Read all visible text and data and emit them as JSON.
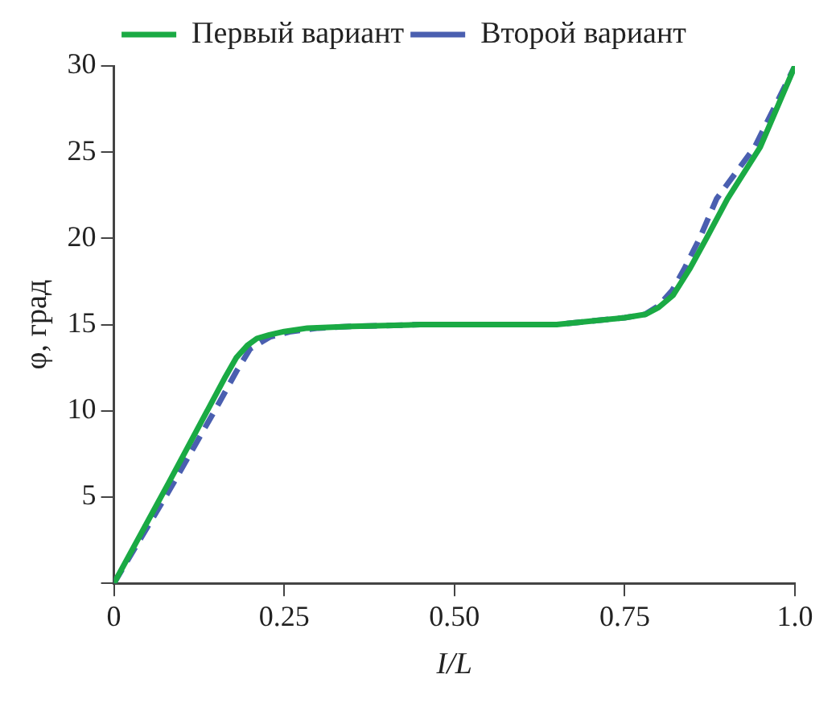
{
  "chart_data": {
    "type": "line",
    "xlabel": "I/L",
    "ylabel": "φ, град",
    "xlim": [
      0,
      1.0
    ],
    "ylim": [
      0,
      30
    ],
    "xticks": [
      0,
      0.25,
      {
        "value": 0.5,
        "label": "0.50"
      },
      0.75,
      {
        "value": 1.0,
        "label": "1.0"
      }
    ],
    "yticks": [
      {
        "value": 0,
        "label": null
      },
      5,
      10,
      15,
      20,
      25,
      30
    ],
    "grid": false,
    "legend": "top",
    "marker": "none",
    "series": [
      {
        "name": "Первый вариант",
        "color": "#1aaa44",
        "line_style": "solid",
        "x": [
          0,
          0.08,
          0.164,
          0.18,
          0.196,
          0.21,
          0.228,
          0.25,
          0.284,
          0.35,
          0.45,
          0.55,
          0.65,
          0.7,
          0.75,
          0.781,
          0.8,
          0.821,
          0.845,
          0.87,
          0.901,
          0.949,
          1.0
        ],
        "values": [
          0,
          5.8,
          12.0,
          13.1,
          13.8,
          14.2,
          14.4,
          14.6,
          14.8,
          14.9,
          15,
          15,
          15,
          15.2,
          15.4,
          15.6,
          16.0,
          16.7,
          18.2,
          20.0,
          22.3,
          25.3,
          30
        ]
      },
      {
        "name": "Второй вариант",
        "color": "#4a5fb0",
        "line_style": "dashed",
        "x": [
          0,
          0.08,
          0.155,
          0.18,
          0.2,
          0.23,
          0.26,
          0.3,
          0.35,
          0.45,
          0.55,
          0.65,
          0.7,
          0.75,
          0.78,
          0.8,
          0.82,
          0.837,
          0.86,
          0.885,
          0.941,
          1.0
        ],
        "values": [
          0,
          5.3,
          10.5,
          12.3,
          13.6,
          14.3,
          14.6,
          14.8,
          14.9,
          15,
          15,
          15,
          15.2,
          15.4,
          15.6,
          16.1,
          17.0,
          18.2,
          20.0,
          22.3,
          25.3,
          30
        ]
      }
    ]
  }
}
